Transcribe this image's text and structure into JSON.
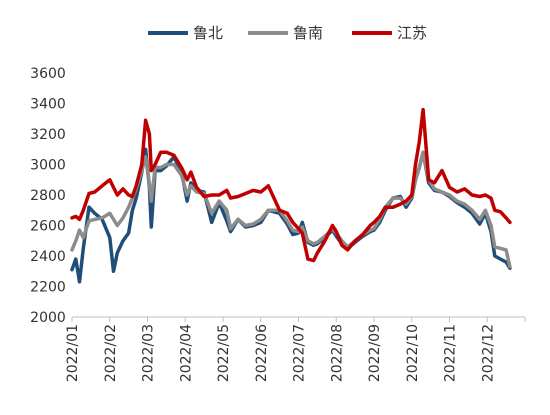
{
  "chart_data": {
    "type": "line",
    "title": "",
    "xlabel": "",
    "ylabel": "",
    "ylim": [
      2000,
      3600
    ],
    "yticks": [
      2000,
      2200,
      2400,
      2600,
      2800,
      3000,
      3200,
      3400,
      3600
    ],
    "x_domain": [
      0,
      12
    ],
    "xticks": [
      {
        "label": "2022/01",
        "pos": 0
      },
      {
        "label": "2022/02",
        "pos": 1
      },
      {
        "label": "2022/03",
        "pos": 2
      },
      {
        "label": "2022/04",
        "pos": 3
      },
      {
        "label": "2022/05",
        "pos": 4
      },
      {
        "label": "2022/06",
        "pos": 5
      },
      {
        "label": "2022/07",
        "pos": 6
      },
      {
        "label": "2022/08",
        "pos": 7
      },
      {
        "label": "2022/09",
        "pos": 8
      },
      {
        "label": "2022/10",
        "pos": 9
      },
      {
        "label": "2022/11",
        "pos": 10
      },
      {
        "label": "2022/12",
        "pos": 11
      }
    ],
    "grid": false,
    "legend_position": "top-center",
    "series": [
      {
        "name": "鲁北",
        "color": "#1f4e79",
        "points": [
          [
            0.0,
            2310
          ],
          [
            0.1,
            2380
          ],
          [
            0.2,
            2230
          ],
          [
            0.3,
            2450
          ],
          [
            0.45,
            2720
          ],
          [
            0.6,
            2680
          ],
          [
            0.8,
            2640
          ],
          [
            1.0,
            2520
          ],
          [
            1.1,
            2300
          ],
          [
            1.2,
            2420
          ],
          [
            1.35,
            2500
          ],
          [
            1.5,
            2550
          ],
          [
            1.6,
            2700
          ],
          [
            1.7,
            2780
          ],
          [
            1.85,
            2950
          ],
          [
            1.95,
            3100
          ],
          [
            2.05,
            2850
          ],
          [
            2.1,
            2590
          ],
          [
            2.2,
            2960
          ],
          [
            2.35,
            2960
          ],
          [
            2.5,
            2990
          ],
          [
            2.7,
            3050
          ],
          [
            2.9,
            2950
          ],
          [
            3.05,
            2760
          ],
          [
            3.15,
            2880
          ],
          [
            3.3,
            2830
          ],
          [
            3.5,
            2820
          ],
          [
            3.7,
            2620
          ],
          [
            3.9,
            2750
          ],
          [
            4.1,
            2630
          ],
          [
            4.2,
            2560
          ],
          [
            4.4,
            2640
          ],
          [
            4.6,
            2590
          ],
          [
            4.8,
            2600
          ],
          [
            5.0,
            2620
          ],
          [
            5.2,
            2700
          ],
          [
            5.5,
            2680
          ],
          [
            5.7,
            2610
          ],
          [
            5.85,
            2540
          ],
          [
            6.0,
            2550
          ],
          [
            6.1,
            2620
          ],
          [
            6.25,
            2490
          ],
          [
            6.4,
            2470
          ],
          [
            6.5,
            2480
          ],
          [
            6.7,
            2520
          ],
          [
            6.9,
            2570
          ],
          [
            7.0,
            2530
          ],
          [
            7.15,
            2480
          ],
          [
            7.3,
            2450
          ],
          [
            7.5,
            2490
          ],
          [
            7.7,
            2530
          ],
          [
            7.9,
            2560
          ],
          [
            8.0,
            2570
          ],
          [
            8.15,
            2620
          ],
          [
            8.3,
            2700
          ],
          [
            8.5,
            2780
          ],
          [
            8.7,
            2790
          ],
          [
            8.85,
            2720
          ],
          [
            9.0,
            2780
          ],
          [
            9.1,
            2900
          ],
          [
            9.2,
            2980
          ],
          [
            9.3,
            3080
          ],
          [
            9.45,
            2880
          ],
          [
            9.6,
            2830
          ],
          [
            9.8,
            2820
          ],
          [
            10.0,
            2790
          ],
          [
            10.2,
            2750
          ],
          [
            10.4,
            2720
          ],
          [
            10.6,
            2680
          ],
          [
            10.8,
            2610
          ],
          [
            10.95,
            2680
          ],
          [
            11.1,
            2560
          ],
          [
            11.2,
            2400
          ],
          [
            11.35,
            2380
          ],
          [
            11.5,
            2360
          ],
          [
            11.6,
            2320
          ]
        ]
      },
      {
        "name": "鲁南",
        "color": "#8c8c8c",
        "points": [
          [
            0.0,
            2440
          ],
          [
            0.1,
            2500
          ],
          [
            0.2,
            2570
          ],
          [
            0.3,
            2520
          ],
          [
            0.45,
            2630
          ],
          [
            0.6,
            2640
          ],
          [
            0.8,
            2650
          ],
          [
            1.0,
            2680
          ],
          [
            1.1,
            2640
          ],
          [
            1.2,
            2600
          ],
          [
            1.35,
            2650
          ],
          [
            1.5,
            2720
          ],
          [
            1.6,
            2780
          ],
          [
            1.7,
            2840
          ],
          [
            1.85,
            2960
          ],
          [
            1.95,
            3050
          ],
          [
            2.05,
            2870
          ],
          [
            2.1,
            2760
          ],
          [
            2.2,
            2980
          ],
          [
            2.35,
            2980
          ],
          [
            2.5,
            3000
          ],
          [
            2.7,
            3000
          ],
          [
            2.9,
            2930
          ],
          [
            3.05,
            2800
          ],
          [
            3.15,
            2860
          ],
          [
            3.3,
            2820
          ],
          [
            3.5,
            2810
          ],
          [
            3.7,
            2680
          ],
          [
            3.9,
            2760
          ],
          [
            4.1,
            2700
          ],
          [
            4.2,
            2580
          ],
          [
            4.4,
            2640
          ],
          [
            4.6,
            2600
          ],
          [
            4.8,
            2610
          ],
          [
            5.0,
            2640
          ],
          [
            5.2,
            2700
          ],
          [
            5.5,
            2700
          ],
          [
            5.7,
            2630
          ],
          [
            5.85,
            2570
          ],
          [
            6.0,
            2560
          ],
          [
            6.1,
            2590
          ],
          [
            6.25,
            2500
          ],
          [
            6.4,
            2480
          ],
          [
            6.5,
            2490
          ],
          [
            6.7,
            2530
          ],
          [
            6.9,
            2580
          ],
          [
            7.0,
            2550
          ],
          [
            7.15,
            2500
          ],
          [
            7.3,
            2460
          ],
          [
            7.5,
            2500
          ],
          [
            7.7,
            2540
          ],
          [
            7.9,
            2570
          ],
          [
            8.0,
            2580
          ],
          [
            8.15,
            2640
          ],
          [
            8.3,
            2720
          ],
          [
            8.5,
            2780
          ],
          [
            8.7,
            2780
          ],
          [
            8.85,
            2740
          ],
          [
            9.0,
            2790
          ],
          [
            9.1,
            2900
          ],
          [
            9.2,
            2980
          ],
          [
            9.3,
            3080
          ],
          [
            9.45,
            2900
          ],
          [
            9.6,
            2840
          ],
          [
            9.8,
            2820
          ],
          [
            10.0,
            2800
          ],
          [
            10.2,
            2760
          ],
          [
            10.4,
            2740
          ],
          [
            10.6,
            2700
          ],
          [
            10.8,
            2640
          ],
          [
            10.95,
            2700
          ],
          [
            11.1,
            2600
          ],
          [
            11.2,
            2460
          ],
          [
            11.35,
            2450
          ],
          [
            11.5,
            2440
          ],
          [
            11.6,
            2330
          ]
        ]
      },
      {
        "name": "江苏",
        "color": "#c00000",
        "points": [
          [
            0.0,
            2650
          ],
          [
            0.1,
            2660
          ],
          [
            0.2,
            2640
          ],
          [
            0.3,
            2700
          ],
          [
            0.45,
            2810
          ],
          [
            0.6,
            2820
          ],
          [
            0.8,
            2860
          ],
          [
            1.0,
            2900
          ],
          [
            1.1,
            2850
          ],
          [
            1.2,
            2800
          ],
          [
            1.35,
            2840
          ],
          [
            1.5,
            2800
          ],
          [
            1.6,
            2790
          ],
          [
            1.7,
            2860
          ],
          [
            1.85,
            3000
          ],
          [
            1.95,
            3290
          ],
          [
            2.05,
            3200
          ],
          [
            2.1,
            2960
          ],
          [
            2.2,
            3000
          ],
          [
            2.35,
            3080
          ],
          [
            2.5,
            3080
          ],
          [
            2.7,
            3060
          ],
          [
            2.9,
            2980
          ],
          [
            3.05,
            2900
          ],
          [
            3.15,
            2950
          ],
          [
            3.3,
            2850
          ],
          [
            3.5,
            2790
          ],
          [
            3.7,
            2800
          ],
          [
            3.9,
            2800
          ],
          [
            4.1,
            2830
          ],
          [
            4.2,
            2780
          ],
          [
            4.4,
            2790
          ],
          [
            4.6,
            2810
          ],
          [
            4.8,
            2830
          ],
          [
            5.0,
            2820
          ],
          [
            5.2,
            2860
          ],
          [
            5.5,
            2700
          ],
          [
            5.7,
            2680
          ],
          [
            5.85,
            2620
          ],
          [
            6.0,
            2580
          ],
          [
            6.1,
            2550
          ],
          [
            6.25,
            2380
          ],
          [
            6.4,
            2370
          ],
          [
            6.5,
            2420
          ],
          [
            6.7,
            2500
          ],
          [
            6.9,
            2600
          ],
          [
            7.0,
            2560
          ],
          [
            7.15,
            2470
          ],
          [
            7.3,
            2440
          ],
          [
            7.5,
            2500
          ],
          [
            7.7,
            2540
          ],
          [
            7.9,
            2600
          ],
          [
            8.0,
            2620
          ],
          [
            8.15,
            2660
          ],
          [
            8.3,
            2720
          ],
          [
            8.5,
            2720
          ],
          [
            8.7,
            2740
          ],
          [
            8.85,
            2760
          ],
          [
            9.0,
            2800
          ],
          [
            9.1,
            3000
          ],
          [
            9.2,
            3150
          ],
          [
            9.3,
            3360
          ],
          [
            9.45,
            2900
          ],
          [
            9.6,
            2880
          ],
          [
            9.8,
            2960
          ],
          [
            10.0,
            2850
          ],
          [
            10.2,
            2820
          ],
          [
            10.4,
            2840
          ],
          [
            10.6,
            2800
          ],
          [
            10.8,
            2790
          ],
          [
            10.95,
            2800
          ],
          [
            11.1,
            2780
          ],
          [
            11.2,
            2700
          ],
          [
            11.35,
            2690
          ],
          [
            11.5,
            2650
          ],
          [
            11.6,
            2620
          ]
        ]
      }
    ]
  }
}
